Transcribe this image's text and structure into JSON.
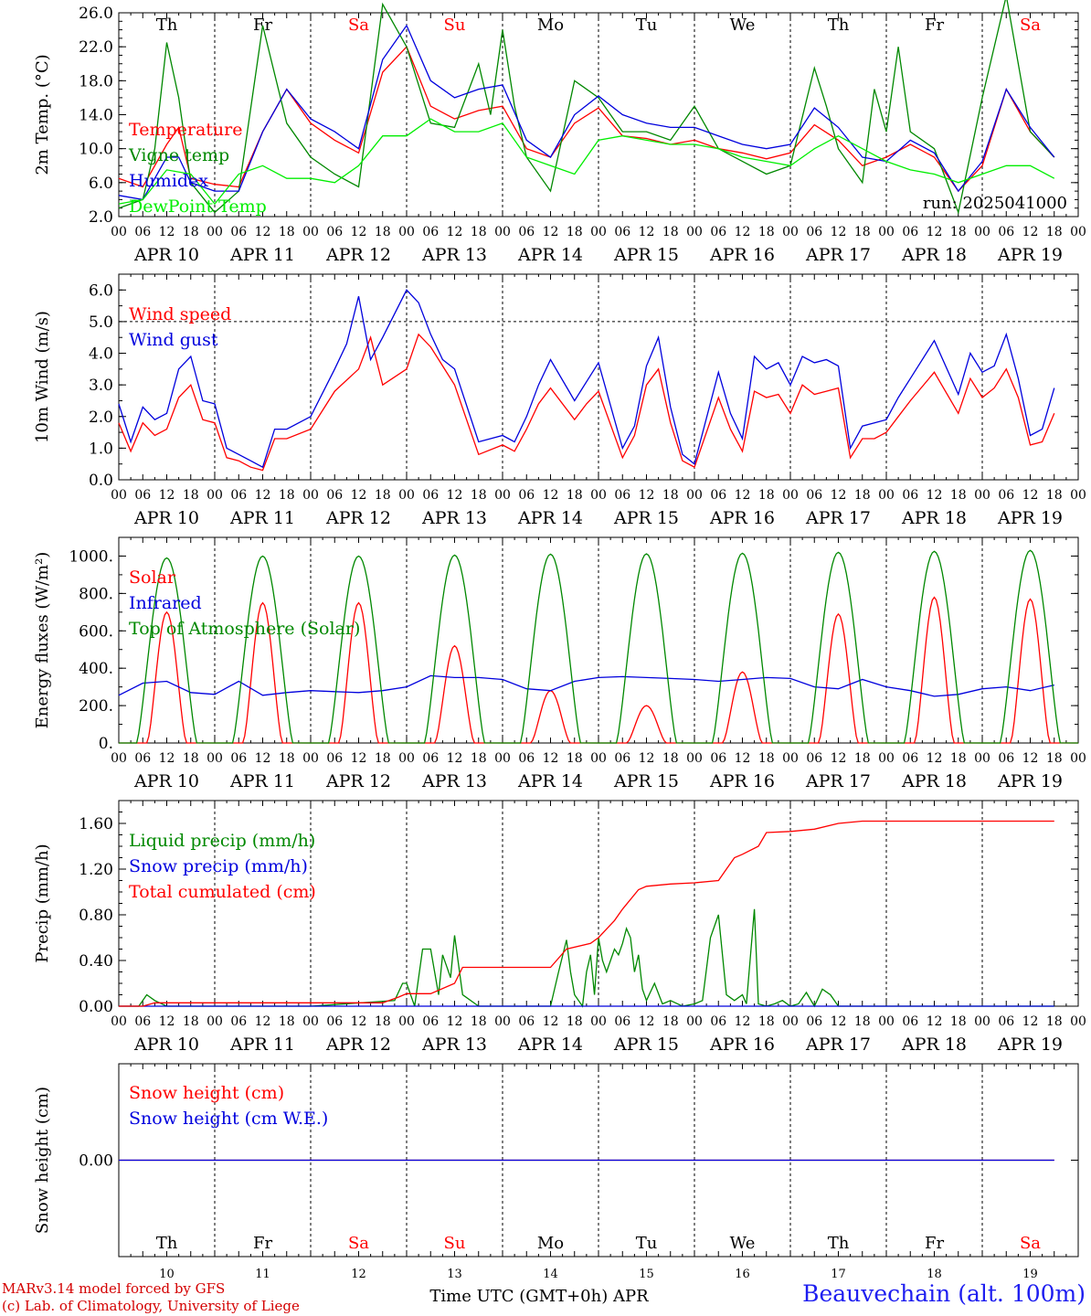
{
  "chart_data": [
    {
      "id": "temp",
      "type": "line",
      "ylabel": "2m Temp. (°C)",
      "ylim": [
        2,
        26
      ],
      "yticks": [
        "2.0",
        "6.0",
        "10.0",
        "14.0",
        "18.0",
        "22.0",
        "26.0"
      ],
      "annotation": "run: 2025041000",
      "series": [
        {
          "name": "Temperature",
          "color": "#ff0000",
          "x": [
            0,
            6,
            12,
            15,
            18,
            24,
            30,
            36,
            42,
            48,
            54,
            60,
            66,
            72,
            78,
            84,
            90,
            96,
            102,
            108,
            114,
            120,
            126,
            132,
            138,
            144,
            150,
            156,
            162,
            168,
            174,
            180,
            186,
            192,
            198,
            204,
            210,
            216,
            222,
            228,
            234
          ],
          "y": [
            6.5,
            5.5,
            10.5,
            12.5,
            6.5,
            5.8,
            5.5,
            12,
            17,
            13,
            11,
            9.5,
            19,
            22,
            15,
            13.5,
            14.5,
            15,
            10,
            9,
            13,
            14.8,
            11.5,
            11.2,
            10.5,
            11,
            10,
            9.5,
            8.8,
            9.5,
            12.8,
            11,
            8,
            9,
            10.5,
            9,
            5,
            8,
            17,
            12,
            9
          ]
        },
        {
          "name": "Vigne temp",
          "color": "#008800",
          "x": [
            0,
            6,
            9,
            12,
            15,
            18,
            24,
            30,
            36,
            42,
            48,
            54,
            60,
            66,
            72,
            78,
            84,
            90,
            93,
            96,
            99,
            102,
            108,
            114,
            120,
            126,
            132,
            138,
            144,
            150,
            156,
            162,
            168,
            174,
            177,
            180,
            186,
            189,
            192,
            195,
            198,
            204,
            210,
            216,
            222,
            228,
            234
          ],
          "y": [
            3,
            4,
            10,
            22.5,
            16,
            6,
            2.5,
            5,
            24.5,
            13,
            9,
            7,
            5.5,
            27,
            22,
            13,
            12.5,
            20,
            14,
            24,
            15,
            9,
            5,
            18,
            16,
            12,
            12,
            11,
            15,
            10,
            8.5,
            7,
            8,
            19.5,
            15,
            10,
            6,
            17,
            12,
            22,
            12,
            10,
            2.5,
            16,
            28,
            12,
            9
          ]
        },
        {
          "name": "Humidex",
          "color": "#0000dd",
          "x": [
            0,
            6,
            12,
            15,
            18,
            24,
            30,
            36,
            42,
            48,
            54,
            60,
            66,
            72,
            78,
            84,
            90,
            96,
            102,
            108,
            114,
            120,
            126,
            132,
            138,
            144,
            150,
            156,
            162,
            168,
            174,
            180,
            186,
            192,
            198,
            204,
            210,
            216,
            222,
            228,
            234
          ],
          "y": [
            4.5,
            4,
            9,
            9,
            6,
            5,
            5,
            12,
            17,
            13.5,
            12,
            10,
            20.5,
            24.5,
            18,
            16,
            17,
            17.5,
            11,
            9,
            14,
            16.2,
            14,
            13,
            12.5,
            12.5,
            11.5,
            10.5,
            10,
            10.5,
            14.8,
            12.5,
            9,
            8.5,
            11,
            9.5,
            5,
            8.5,
            17,
            12.5,
            9
          ]
        },
        {
          "name": "DewPoint Temp",
          "color": "#00ee00",
          "x": [
            0,
            6,
            12,
            18,
            24,
            30,
            36,
            42,
            48,
            54,
            60,
            66,
            72,
            78,
            84,
            90,
            96,
            102,
            108,
            114,
            120,
            126,
            132,
            138,
            144,
            150,
            156,
            162,
            168,
            174,
            180,
            186,
            192,
            198,
            204,
            210,
            216,
            222,
            228,
            234
          ],
          "y": [
            3.5,
            4,
            7.5,
            7,
            3.5,
            7,
            8,
            6.5,
            6.5,
            6,
            8,
            11.5,
            11.5,
            13.5,
            12,
            12,
            13,
            9,
            8,
            7,
            11,
            11.5,
            11,
            10.5,
            10.5,
            10,
            9,
            8.5,
            8,
            10,
            11.5,
            10,
            8.5,
            7.5,
            7,
            6,
            7,
            8,
            8,
            6.5
          ]
        }
      ]
    },
    {
      "id": "wind",
      "type": "line",
      "ylabel": "10m Wind (m/s)",
      "ylim": [
        0,
        6.5
      ],
      "yticks": [
        "0.0",
        "1.0",
        "2.0",
        "3.0",
        "4.0",
        "5.0",
        "6.0"
      ],
      "reference_line": 5,
      "series": [
        {
          "name": "Wind speed",
          "color": "#ff0000",
          "x": [
            0,
            3,
            6,
            9,
            12,
            15,
            18,
            21,
            24,
            27,
            30,
            33,
            36,
            39,
            42,
            48,
            54,
            60,
            63,
            66,
            72,
            75,
            78,
            81,
            84,
            90,
            96,
            99,
            102,
            105,
            108,
            114,
            117,
            120,
            126,
            129,
            132,
            135,
            138,
            141,
            144,
            150,
            153,
            156,
            159,
            162,
            165,
            168,
            171,
            174,
            177,
            180,
            183,
            186,
            189,
            192,
            195,
            198,
            204,
            210,
            213,
            216,
            219,
            222,
            225,
            228,
            231,
            234
          ],
          "y": [
            1.8,
            0.9,
            1.8,
            1.4,
            1.6,
            2.6,
            3.0,
            1.9,
            1.8,
            0.7,
            0.6,
            0.4,
            0.3,
            1.3,
            1.3,
            1.6,
            2.8,
            3.5,
            4.5,
            3.0,
            3.5,
            4.6,
            4.2,
            3.6,
            3.0,
            0.8,
            1.1,
            0.9,
            1.6,
            2.4,
            2.9,
            1.9,
            2.4,
            2.8,
            0.7,
            1.4,
            3.0,
            3.5,
            1.8,
            0.6,
            0.4,
            2.6,
            1.6,
            0.9,
            2.8,
            2.6,
            2.7,
            2.1,
            3.0,
            2.7,
            2.8,
            2.9,
            0.7,
            1.3,
            1.3,
            1.5,
            2.0,
            2.5,
            3.4,
            2.1,
            3.2,
            2.6,
            2.9,
            3.5,
            2.6,
            1.1,
            1.2,
            2.1
          ]
        },
        {
          "name": "Wind gust",
          "color": "#0000dd",
          "x": [
            0,
            3,
            6,
            9,
            12,
            15,
            18,
            21,
            24,
            27,
            30,
            33,
            36,
            39,
            42,
            48,
            54,
            57,
            60,
            63,
            66,
            72,
            75,
            78,
            81,
            84,
            90,
            96,
            99,
            102,
            105,
            108,
            114,
            117,
            120,
            126,
            129,
            132,
            135,
            138,
            141,
            144,
            150,
            153,
            156,
            159,
            162,
            165,
            168,
            171,
            174,
            177,
            180,
            183,
            186,
            189,
            192,
            195,
            198,
            204,
            210,
            213,
            216,
            219,
            222,
            225,
            228,
            231,
            234
          ],
          "y": [
            2.4,
            1.2,
            2.3,
            1.9,
            2.1,
            3.5,
            3.9,
            2.5,
            2.4,
            1.0,
            0.8,
            0.6,
            0.4,
            1.6,
            1.6,
            2.0,
            3.5,
            4.3,
            5.8,
            3.8,
            4.5,
            6.0,
            5.6,
            4.6,
            3.8,
            3.5,
            1.2,
            1.4,
            1.2,
            2.0,
            3.0,
            3.8,
            2.5,
            3.1,
            3.7,
            1.0,
            1.7,
            3.6,
            4.5,
            2.3,
            0.8,
            0.5,
            3.4,
            2.1,
            1.3,
            3.9,
            3.5,
            3.7,
            3.0,
            3.9,
            3.7,
            3.8,
            3.6,
            1.0,
            1.7,
            1.8,
            1.9,
            2.6,
            3.2,
            4.4,
            2.7,
            4.0,
            3.4,
            3.6,
            4.6,
            3.2,
            1.4,
            1.6,
            2.9
          ]
        }
      ]
    },
    {
      "id": "energy",
      "type": "line",
      "ylabel": "Energy fluxes (W/m²)",
      "ylim": [
        0,
        1100
      ],
      "yticks": [
        "0.",
        "200.",
        "400.",
        "600.",
        "800.",
        "1000."
      ],
      "series": [
        {
          "name": "Solar",
          "color": "#ff0000",
          "peaks": [
            700,
            750,
            750,
            520,
            280,
            200,
            380,
            690,
            780,
            770
          ]
        },
        {
          "name": "Infrared",
          "color": "#0000dd",
          "x": [
            0,
            6,
            12,
            18,
            24,
            30,
            36,
            42,
            48,
            54,
            60,
            66,
            72,
            78,
            84,
            90,
            96,
            102,
            108,
            114,
            120,
            126,
            132,
            138,
            144,
            150,
            156,
            162,
            168,
            174,
            180,
            186,
            192,
            198,
            204,
            210,
            216,
            222,
            228,
            234
          ],
          "y": [
            255,
            320,
            330,
            270,
            260,
            330,
            255,
            270,
            280,
            275,
            270,
            280,
            300,
            360,
            350,
            350,
            340,
            290,
            280,
            330,
            350,
            355,
            350,
            345,
            340,
            330,
            340,
            350,
            345,
            300,
            290,
            340,
            300,
            280,
            250,
            260,
            290,
            300,
            280,
            310
          ]
        },
        {
          "name": "Top of Atmosphere (Solar)",
          "color": "#008800",
          "peaks": [
            990,
            1000,
            1000,
            1005,
            1010,
            1012,
            1015,
            1020,
            1025,
            1030
          ]
        }
      ]
    },
    {
      "id": "precip",
      "type": "line",
      "ylabel": "Precip (mm/h)",
      "ylim": [
        0,
        1.8
      ],
      "yticks": [
        "0.00",
        "0.40",
        "0.80",
        "1.20",
        "1.60"
      ],
      "series": [
        {
          "name": "Liquid precip (mm/h)",
          "color": "#008800",
          "x": [
            0,
            5,
            7,
            9,
            12,
            18,
            24,
            48,
            69,
            71,
            72,
            74,
            76,
            78,
            80,
            81,
            82,
            83,
            84,
            86,
            90,
            96,
            108,
            110,
            112,
            113,
            114,
            116,
            117,
            118,
            119,
            120,
            121,
            122,
            124,
            125,
            126,
            127,
            128,
            129,
            130,
            131,
            132,
            134,
            136,
            138,
            141,
            144,
            146,
            148,
            150,
            152,
            154,
            156,
            157,
            159,
            160,
            162,
            164,
            166,
            168,
            170,
            172,
            174,
            176,
            178,
            180,
            234
          ],
          "y": [
            0,
            0,
            0.1,
            0.05,
            0,
            0,
            0,
            0,
            0.05,
            0.2,
            0.2,
            0,
            0.5,
            0.5,
            0.1,
            0.45,
            0.35,
            0.25,
            0.62,
            0.1,
            0,
            0,
            0,
            0.3,
            0.58,
            0.3,
            0.1,
            0,
            0.3,
            0.45,
            0.1,
            0.6,
            0.4,
            0.3,
            0.5,
            0.45,
            0.55,
            0.68,
            0.6,
            0.3,
            0.45,
            0.15,
            0.05,
            0.2,
            0.02,
            0.05,
            0,
            0.02,
            0.05,
            0.6,
            0.8,
            0.1,
            0.05,
            0.1,
            0.02,
            0.85,
            0.02,
            0,
            0.02,
            0.05,
            0,
            0.02,
            0.12,
            0,
            0.15,
            0.1,
            0,
            0
          ]
        },
        {
          "name": "Snow precip (mm/h)",
          "color": "#0000dd",
          "x": [
            0,
            234
          ],
          "y": [
            0,
            0
          ]
        },
        {
          "name": "Total cumulated (cm)",
          "color": "#ff0000",
          "x": [
            0,
            6,
            9,
            24,
            48,
            66,
            70,
            72,
            78,
            84,
            86,
            90,
            96,
            108,
            112,
            118,
            120,
            124,
            126,
            130,
            132,
            138,
            144,
            150,
            152,
            154,
            156,
            160,
            162,
            168,
            174,
            180,
            186,
            192,
            234
          ],
          "y": [
            0,
            0,
            0.03,
            0.03,
            0.03,
            0.03,
            0.08,
            0.11,
            0.11,
            0.2,
            0.34,
            0.34,
            0.34,
            0.34,
            0.5,
            0.55,
            0.6,
            0.75,
            0.85,
            1.02,
            1.05,
            1.07,
            1.08,
            1.1,
            1.2,
            1.3,
            1.33,
            1.4,
            1.52,
            1.53,
            1.55,
            1.6,
            1.62,
            1.62,
            1.62
          ]
        }
      ]
    },
    {
      "id": "snow",
      "type": "line",
      "ylabel": "Snow height (cm)",
      "yticks": [
        "0.00"
      ],
      "series": [
        {
          "name": "Snow height (cm)",
          "color": "#ff0000",
          "x": [
            0,
            234
          ],
          "y": [
            0,
            0
          ]
        },
        {
          "name": "Snow height (cm W.E.)",
          "color": "#0000dd",
          "x": [
            0,
            234
          ],
          "y": [
            0,
            0
          ]
        }
      ]
    }
  ],
  "days": {
    "top_weekdays": [
      "Th",
      "Fr",
      "Sa",
      "Su",
      "Mo",
      "Tu",
      "We",
      "Th",
      "Fr",
      "Sa"
    ],
    "dates": [
      "APR 10",
      "APR 11",
      "APR 12",
      "APR 13",
      "APR 14",
      "APR 15",
      "APR 16",
      "APR 17",
      "APR 18",
      "APR 19"
    ],
    "day_numbers": [
      "10",
      "11",
      "12",
      "13",
      "14",
      "15",
      "16",
      "17",
      "18",
      "19"
    ],
    "weekend_indices": [
      2,
      3,
      9
    ],
    "hour_labels": [
      "00",
      "06",
      "12",
      "18"
    ],
    "final_hour_label": "00"
  },
  "xlabel": "Time UTC (GMT+0h) APR",
  "credits": {
    "line1": "MARv3.14 model forced by GFS",
    "line2": "(c) Lab. of Climatology, University of Liege"
  },
  "station": "Beauvechain (alt. 100m)",
  "colors": {
    "red": "#ff0000",
    "green": "#008800",
    "blue": "#0000dd",
    "light_green": "#00ee00",
    "weekend": "#ff0000",
    "station": "#1e1ef0"
  }
}
